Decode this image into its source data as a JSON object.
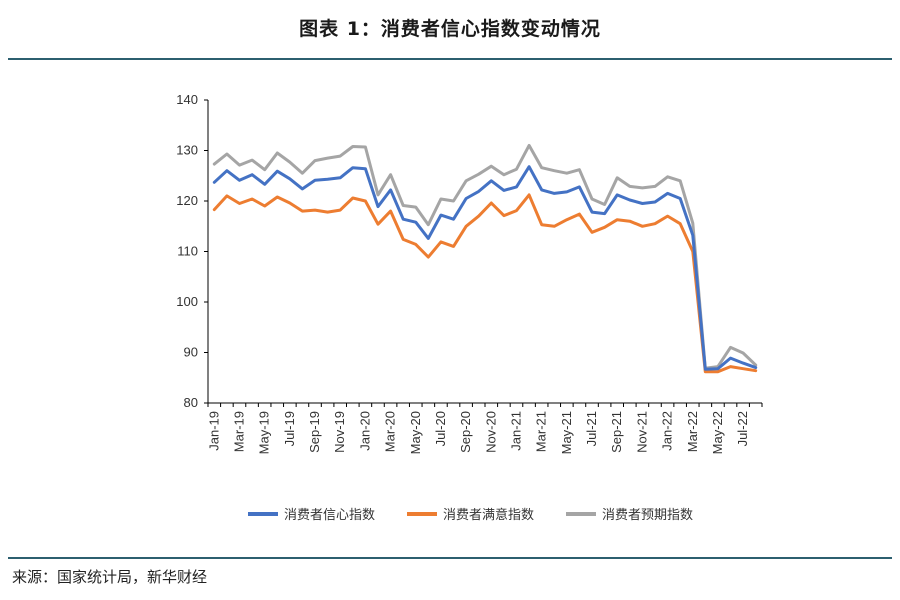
{
  "header": {
    "title": "图表 1：消费者信心指数变动情况"
  },
  "footer": {
    "source": "来源：国家统计局，新华财经"
  },
  "chart_data": {
    "type": "line",
    "title": "图表 1：消费者信心指数变动情况",
    "xlabel": "",
    "ylabel": "",
    "ylim": [
      80,
      140
    ],
    "yticks": [
      80,
      90,
      100,
      110,
      120,
      130,
      140
    ],
    "grid": false,
    "legend": "bottom",
    "x": [
      "Jan-19",
      "Feb-19",
      "Mar-19",
      "Apr-19",
      "May-19",
      "Jun-19",
      "Jul-19",
      "Aug-19",
      "Sep-19",
      "Oct-19",
      "Nov-19",
      "Dec-19",
      "Jan-20",
      "Feb-20",
      "Mar-20",
      "Apr-20",
      "May-20",
      "Jun-20",
      "Jul-20",
      "Aug-20",
      "Sep-20",
      "Oct-20",
      "Nov-20",
      "Dec-20",
      "Jan-21",
      "Feb-21",
      "Mar-21",
      "Apr-21",
      "May-21",
      "Jun-21",
      "Jul-21",
      "Aug-21",
      "Sep-21",
      "Oct-21",
      "Nov-21",
      "Dec-21",
      "Jan-22",
      "Feb-22",
      "Mar-22",
      "Apr-22",
      "May-22",
      "Jun-22",
      "Jul-22",
      "Aug-22"
    ],
    "tick_labels": [
      "Jan-19",
      "Mar-19",
      "May-19",
      "Jul-19",
      "Sep-19",
      "Nov-19",
      "Jan-20",
      "Mar-20",
      "May-20",
      "Jul-20",
      "Sep-20",
      "Nov-20",
      "Jan-21",
      "Mar-21",
      "May-21",
      "Jul-21",
      "Sep-21",
      "Nov-21",
      "Jan-22",
      "Mar-22",
      "May-22",
      "Jul-22"
    ],
    "series": [
      {
        "name": "消费者信心指数",
        "color": "#4472c4",
        "values": [
          123.7,
          126.0,
          124.1,
          125.2,
          123.3,
          125.9,
          124.4,
          122.4,
          124.1,
          124.3,
          124.6,
          126.6,
          126.4,
          118.9,
          122.2,
          116.4,
          115.8,
          112.6,
          117.2,
          116.4,
          120.5,
          121.9,
          124.0,
          122.1,
          122.8,
          126.8,
          122.2,
          121.5,
          121.8,
          122.8,
          117.8,
          117.5,
          121.2,
          120.2,
          119.5,
          119.8,
          121.5,
          120.5,
          113.2,
          86.7,
          86.8,
          88.9,
          87.9,
          87.0
        ]
      },
      {
        "name": "消费者满意指数",
        "color": "#ed7d31",
        "values": [
          118.3,
          121.0,
          119.5,
          120.4,
          119.0,
          120.8,
          119.6,
          118.0,
          118.2,
          117.8,
          118.2,
          120.6,
          120.0,
          115.4,
          118.0,
          112.4,
          111.4,
          108.9,
          111.9,
          111.0,
          115.0,
          117.0,
          119.6,
          117.1,
          118.1,
          121.2,
          115.3,
          115.0,
          116.3,
          117.4,
          113.8,
          114.8,
          116.3,
          116.0,
          115.0,
          115.5,
          117.0,
          115.5,
          110.0,
          86.2,
          86.2,
          87.2,
          86.8,
          86.4
        ]
      },
      {
        "name": "消费者预期指数",
        "color": "#a5a5a5",
        "values": [
          127.3,
          129.3,
          127.1,
          128.1,
          126.2,
          129.5,
          127.7,
          125.5,
          128.0,
          128.5,
          128.9,
          130.8,
          130.7,
          121.2,
          125.2,
          119.1,
          118.8,
          115.3,
          120.4,
          120.0,
          124.0,
          125.3,
          126.9,
          125.2,
          126.3,
          131.0,
          126.6,
          126.0,
          125.5,
          126.2,
          120.4,
          119.3,
          124.6,
          122.9,
          122.6,
          122.9,
          124.8,
          124.0,
          115.6,
          86.9,
          87.2,
          91.0,
          89.9,
          87.5
        ]
      }
    ]
  }
}
